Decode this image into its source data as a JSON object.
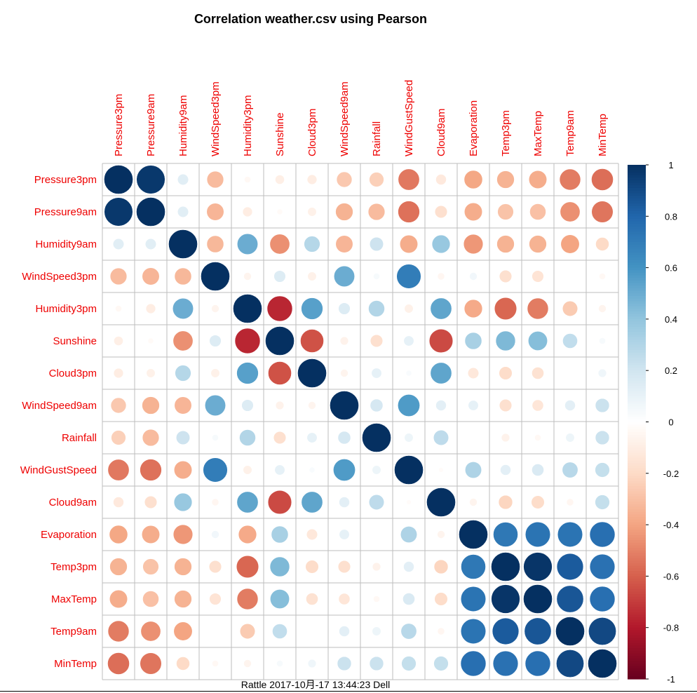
{
  "chart_data": {
    "type": "heatmap",
    "title": "Correlation weather.csv using Pearson",
    "footer": "Rattle 2017-10月-17 13:44:23 Dell",
    "method": "Pearson",
    "variables": [
      "Pressure3pm",
      "Pressure9am",
      "Humidity9am",
      "WindSpeed3pm",
      "Humidity3pm",
      "Sunshine",
      "Cloud3pm",
      "WindSpeed9am",
      "Rainfall",
      "WindGustSpeed",
      "Cloud9am",
      "Evaporation",
      "Temp3pm",
      "MaxTemp",
      "Temp9am",
      "MinTemp"
    ],
    "matrix": [
      [
        1.0,
        0.97,
        0.13,
        -0.32,
        -0.04,
        -0.09,
        -0.1,
        -0.27,
        -0.24,
        -0.53,
        -0.12,
        -0.39,
        -0.35,
        -0.37,
        -0.52,
        -0.56
      ],
      [
        0.97,
        1.0,
        0.13,
        -0.34,
        -0.1,
        -0.03,
        -0.08,
        -0.35,
        -0.32,
        -0.55,
        -0.17,
        -0.37,
        -0.29,
        -0.3,
        -0.46,
        -0.54
      ],
      [
        0.13,
        0.13,
        1.0,
        -0.33,
        0.5,
        -0.46,
        0.29,
        -0.34,
        0.21,
        -0.37,
        0.38,
        -0.44,
        -0.35,
        -0.35,
        -0.4,
        -0.2
      ],
      [
        -0.32,
        -0.34,
        -0.33,
        1.0,
        -0.06,
        0.15,
        -0.08,
        0.5,
        0.04,
        0.7,
        -0.05,
        0.06,
        -0.17,
        -0.15,
        0.0,
        -0.04
      ],
      [
        -0.04,
        -0.1,
        0.5,
        -0.06,
        1.0,
        -0.76,
        0.55,
        0.15,
        0.3,
        -0.08,
        0.53,
        -0.38,
        -0.58,
        -0.52,
        -0.26,
        -0.06
      ],
      [
        -0.09,
        -0.03,
        -0.46,
        0.15,
        -0.76,
        1.0,
        -0.64,
        -0.07,
        -0.17,
        0.11,
        -0.66,
        0.33,
        0.45,
        0.43,
        0.25,
        0.04
      ],
      [
        -0.1,
        -0.08,
        0.29,
        -0.08,
        0.55,
        -0.64,
        1.0,
        -0.06,
        0.11,
        0.03,
        0.53,
        -0.13,
        -0.19,
        -0.16,
        0.0,
        0.07
      ],
      [
        -0.27,
        -0.35,
        -0.34,
        0.5,
        0.15,
        -0.07,
        -0.06,
        1.0,
        0.18,
        0.57,
        0.12,
        0.11,
        -0.17,
        -0.14,
        0.12,
        0.22
      ],
      [
        -0.24,
        -0.32,
        0.21,
        0.04,
        0.3,
        -0.17,
        0.11,
        0.18,
        1.0,
        0.08,
        0.26,
        0.0,
        -0.07,
        -0.04,
        0.08,
        0.22
      ],
      [
        -0.53,
        -0.55,
        -0.37,
        0.7,
        -0.08,
        0.11,
        0.03,
        0.57,
        0.08,
        1.0,
        -0.02,
        0.31,
        0.12,
        0.16,
        0.28,
        0.24
      ],
      [
        -0.12,
        -0.17,
        0.38,
        -0.05,
        0.53,
        -0.66,
        0.53,
        0.12,
        0.26,
        -0.02,
        1.0,
        -0.06,
        -0.22,
        -0.19,
        -0.05,
        0.24
      ],
      [
        -0.39,
        -0.37,
        -0.44,
        0.06,
        -0.38,
        0.33,
        -0.13,
        0.11,
        0.0,
        0.31,
        -0.06,
        1.0,
        0.72,
        0.74,
        0.74,
        0.76
      ],
      [
        -0.35,
        -0.29,
        -0.35,
        -0.17,
        -0.58,
        0.45,
        -0.19,
        -0.17,
        -0.07,
        0.12,
        -0.22,
        0.72,
        1.0,
        0.98,
        0.84,
        0.75
      ],
      [
        -0.37,
        -0.3,
        -0.35,
        -0.15,
        -0.52,
        0.43,
        -0.16,
        -0.14,
        -0.04,
        0.16,
        -0.19,
        0.74,
        0.98,
        1.0,
        0.86,
        0.76
      ],
      [
        -0.52,
        -0.46,
        -0.4,
        0.0,
        -0.26,
        0.25,
        0.0,
        0.12,
        0.08,
        0.28,
        -0.05,
        0.74,
        0.84,
        0.86,
        1.0,
        0.91
      ],
      [
        -0.56,
        -0.54,
        -0.2,
        -0.04,
        -0.06,
        0.04,
        0.07,
        0.22,
        0.22,
        0.24,
        0.24,
        0.76,
        0.75,
        0.76,
        0.91,
        1.0
      ]
    ],
    "legend": {
      "position": "right",
      "ticks": [
        "1",
        "0.8",
        "0.6",
        "0.4",
        "0.2",
        "0",
        "-0.2",
        "-0.4",
        "-0.6",
        "-0.8",
        "-1"
      ],
      "range": [
        -1,
        1
      ],
      "color_low": "#67001f",
      "color_mid": "#ffffff",
      "color_high": "#053061"
    },
    "label_color": "#ee0000",
    "grid_color": "#bebebe"
  }
}
